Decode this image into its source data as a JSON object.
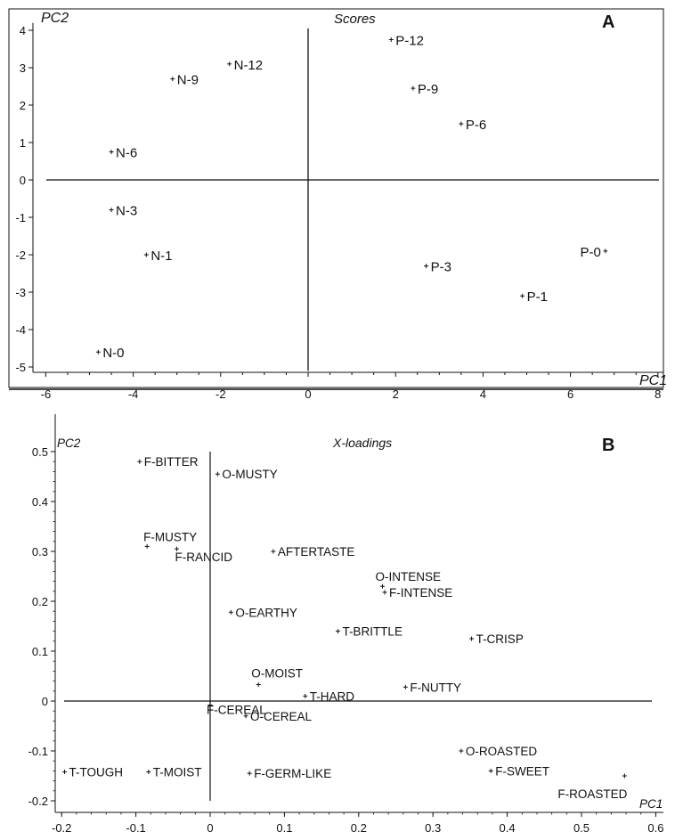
{
  "chart_data": [
    {
      "type": "scatter",
      "panel_label": "A",
      "title": "Scores",
      "xlabel": "PC1",
      "ylabel": "PC2",
      "xlim": [
        -6.7,
        8.1
      ],
      "ylim": [
        -5.3,
        4.2
      ],
      "xticks": [
        -6,
        -4,
        -2,
        0,
        2,
        4,
        6,
        8
      ],
      "yticks": [
        4,
        3,
        2,
        1,
        0,
        -1,
        -2,
        -3,
        -4,
        -5
      ],
      "grid": false,
      "points": [
        {
          "label": "N-0",
          "x": -4.8,
          "y": -4.6
        },
        {
          "label": "N-1",
          "x": -3.7,
          "y": -2.0
        },
        {
          "label": "N-3",
          "x": -4.5,
          "y": -0.8
        },
        {
          "label": "N-6",
          "x": -4.5,
          "y": 0.75
        },
        {
          "label": "N-9",
          "x": -3.1,
          "y": 2.7
        },
        {
          "label": "N-12",
          "x": -1.8,
          "y": 3.1
        },
        {
          "label": "P-12",
          "x": 1.9,
          "y": 3.75
        },
        {
          "label": "P-9",
          "x": 2.4,
          "y": 2.45
        },
        {
          "label": "P-6",
          "x": 3.5,
          "y": 1.5
        },
        {
          "label": "P-3",
          "x": 2.7,
          "y": -2.3
        },
        {
          "label": "P-1",
          "x": 4.9,
          "y": -3.1
        },
        {
          "label": "P-0",
          "x": 6.8,
          "y": -1.9
        }
      ]
    },
    {
      "type": "scatter",
      "panel_label": "B",
      "title": "X-loadings",
      "xlabel": "PC1",
      "ylabel": "PC2",
      "xlim": [
        -0.22,
        0.62
      ],
      "ylim": [
        -0.22,
        0.52
      ],
      "xticks": [
        -0.2,
        -0.1,
        0,
        0.1,
        0.2,
        0.3,
        0.4,
        0.5,
        0.6
      ],
      "yticks": [
        0.5,
        0.4,
        0.3,
        0.2,
        0.1,
        0,
        -0.1,
        -0.2
      ],
      "grid": false,
      "points": [
        {
          "label": "F-BITTER",
          "x": -0.095,
          "y": 0.48
        },
        {
          "label": "O-MUSTY",
          "x": 0.01,
          "y": 0.455
        },
        {
          "label": "F-MUSTY",
          "x": -0.085,
          "y": 0.31
        },
        {
          "label": "F-RANCID",
          "x": -0.045,
          "y": 0.305
        },
        {
          "label": "AFTERTASTE",
          "x": 0.085,
          "y": 0.3
        },
        {
          "label": "O-INTENSE",
          "x": 0.232,
          "y": 0.23
        },
        {
          "label": "F-INTENSE",
          "x": 0.235,
          "y": 0.218
        },
        {
          "label": "O-EARTHY",
          "x": 0.028,
          "y": 0.178
        },
        {
          "label": "T-BRITTLE",
          "x": 0.172,
          "y": 0.14
        },
        {
          "label": "T-CRISP",
          "x": 0.352,
          "y": 0.125
        },
        {
          "label": "O-MOIST",
          "x": 0.065,
          "y": 0.033
        },
        {
          "label": "T-HARD",
          "x": 0.128,
          "y": 0.01
        },
        {
          "label": "F-NUTTY",
          "x": 0.263,
          "y": 0.028
        },
        {
          "label": "F-CEREAL",
          "x": 0.0,
          "y": -0.008
        },
        {
          "label": "O-CEREAL",
          "x": 0.048,
          "y": -0.03
        },
        {
          "label": "O-ROASTED",
          "x": 0.338,
          "y": -0.1
        },
        {
          "label": "F-SWEET",
          "x": 0.378,
          "y": -0.14
        },
        {
          "label": "F-ROASTED",
          "x": 0.558,
          "y": -0.15
        },
        {
          "label": "T-TOUGH",
          "x": -0.196,
          "y": -0.142
        },
        {
          "label": "T-MOIST",
          "x": -0.083,
          "y": -0.142
        },
        {
          "label": "F-GERM-LIKE",
          "x": 0.053,
          "y": -0.145
        }
      ]
    }
  ]
}
